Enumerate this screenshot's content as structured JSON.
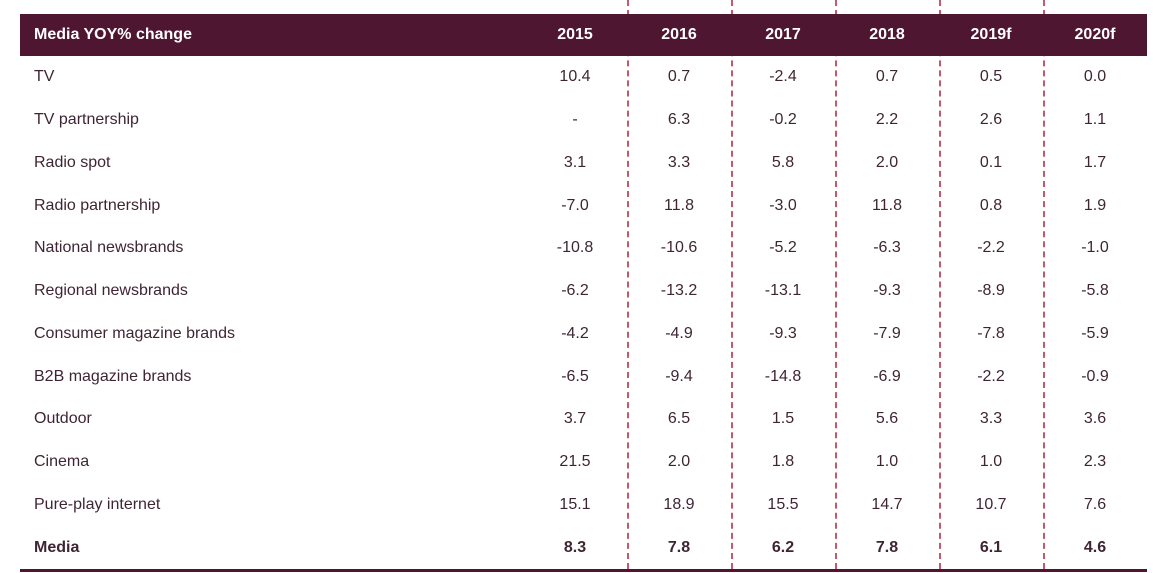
{
  "colors": {
    "header_bg": "#4f1631",
    "body_text": "#3f2533",
    "dashed_line": "#c4586c",
    "header_text": "#ffffff"
  },
  "table": {
    "header": [
      "Media YOY% change",
      "2015",
      "2016",
      "2017",
      "2018",
      "2019f",
      "2020f"
    ],
    "rows": [
      {
        "label": "TV",
        "values": [
          "10.4",
          "0.7",
          "-2.4",
          "0.7",
          "0.5",
          "0.0"
        ],
        "bold": false
      },
      {
        "label": "TV partnership",
        "values": [
          "-",
          "6.3",
          "-0.2",
          "2.2",
          "2.6",
          "1.1"
        ],
        "bold": false
      },
      {
        "label": "Radio spot",
        "values": [
          "3.1",
          "3.3",
          "5.8",
          "2.0",
          "0.1",
          "1.7"
        ],
        "bold": false
      },
      {
        "label": "Radio partnership",
        "values": [
          "-7.0",
          "11.8",
          "-3.0",
          "11.8",
          "0.8",
          "1.9"
        ],
        "bold": false
      },
      {
        "label": "National newsbrands",
        "values": [
          "-10.8",
          "-10.6",
          "-5.2",
          "-6.3",
          "-2.2",
          "-1.0"
        ],
        "bold": false
      },
      {
        "label": "Regional newsbrands",
        "values": [
          "-6.2",
          "-13.2",
          "-13.1",
          "-9.3",
          "-8.9",
          "-5.8"
        ],
        "bold": false
      },
      {
        "label": "Consumer magazine brands",
        "values": [
          "-4.2",
          "-4.9",
          "-9.3",
          "-7.9",
          "-7.8",
          "-5.9"
        ],
        "bold": false
      },
      {
        "label": "B2B magazine brands",
        "values": [
          "-6.5",
          "-9.4",
          "-14.8",
          "-6.9",
          "-2.2",
          "-0.9"
        ],
        "bold": false
      },
      {
        "label": "Outdoor",
        "values": [
          "3.7",
          "6.5",
          "1.5",
          "5.6",
          "3.3",
          "3.6"
        ],
        "bold": false
      },
      {
        "label": "Cinema",
        "values": [
          "21.5",
          "2.0",
          "1.8",
          "1.0",
          "1.0",
          "2.3"
        ],
        "bold": false
      },
      {
        "label": "Pure-play internet",
        "values": [
          "15.1",
          "18.9",
          "15.5",
          "14.7",
          "10.7",
          "7.6"
        ],
        "bold": false
      },
      {
        "label": "Media",
        "values": [
          "8.3",
          "7.8",
          "6.2",
          "7.8",
          "6.1",
          "4.6"
        ],
        "bold": true
      }
    ]
  },
  "chart_data": {
    "type": "table",
    "title": "Media YOY% change",
    "columns": [
      "2015",
      "2016",
      "2017",
      "2018",
      "2019f",
      "2020f"
    ],
    "rows": [
      {
        "label": "TV",
        "values": [
          10.4,
          0.7,
          -2.4,
          0.7,
          0.5,
          0.0
        ]
      },
      {
        "label": "TV partnership",
        "values": [
          null,
          6.3,
          -0.2,
          2.2,
          2.6,
          1.1
        ]
      },
      {
        "label": "Radio spot",
        "values": [
          3.1,
          3.3,
          5.8,
          2.0,
          0.1,
          1.7
        ]
      },
      {
        "label": "Radio partnership",
        "values": [
          -7.0,
          11.8,
          -3.0,
          11.8,
          0.8,
          1.9
        ]
      },
      {
        "label": "National newsbrands",
        "values": [
          -10.8,
          -10.6,
          -5.2,
          -6.3,
          -2.2,
          -1.0
        ]
      },
      {
        "label": "Regional newsbrands",
        "values": [
          -6.2,
          -13.2,
          -13.1,
          -9.3,
          -8.9,
          -5.8
        ]
      },
      {
        "label": "Consumer magazine brands",
        "values": [
          -4.2,
          -4.9,
          -9.3,
          -7.9,
          -7.8,
          -5.9
        ]
      },
      {
        "label": "B2B magazine brands",
        "values": [
          -6.5,
          -9.4,
          -14.8,
          -6.9,
          -2.2,
          -0.9
        ]
      },
      {
        "label": "Outdoor",
        "values": [
          3.7,
          6.5,
          1.5,
          5.6,
          3.3,
          3.6
        ]
      },
      {
        "label": "Cinema",
        "values": [
          21.5,
          2.0,
          1.8,
          1.0,
          1.0,
          2.3
        ]
      },
      {
        "label": "Pure-play internet",
        "values": [
          15.1,
          18.9,
          15.5,
          14.7,
          10.7,
          7.6
        ]
      },
      {
        "label": "Media",
        "values": [
          8.3,
          7.8,
          6.2,
          7.8,
          6.1,
          4.6
        ]
      }
    ]
  }
}
